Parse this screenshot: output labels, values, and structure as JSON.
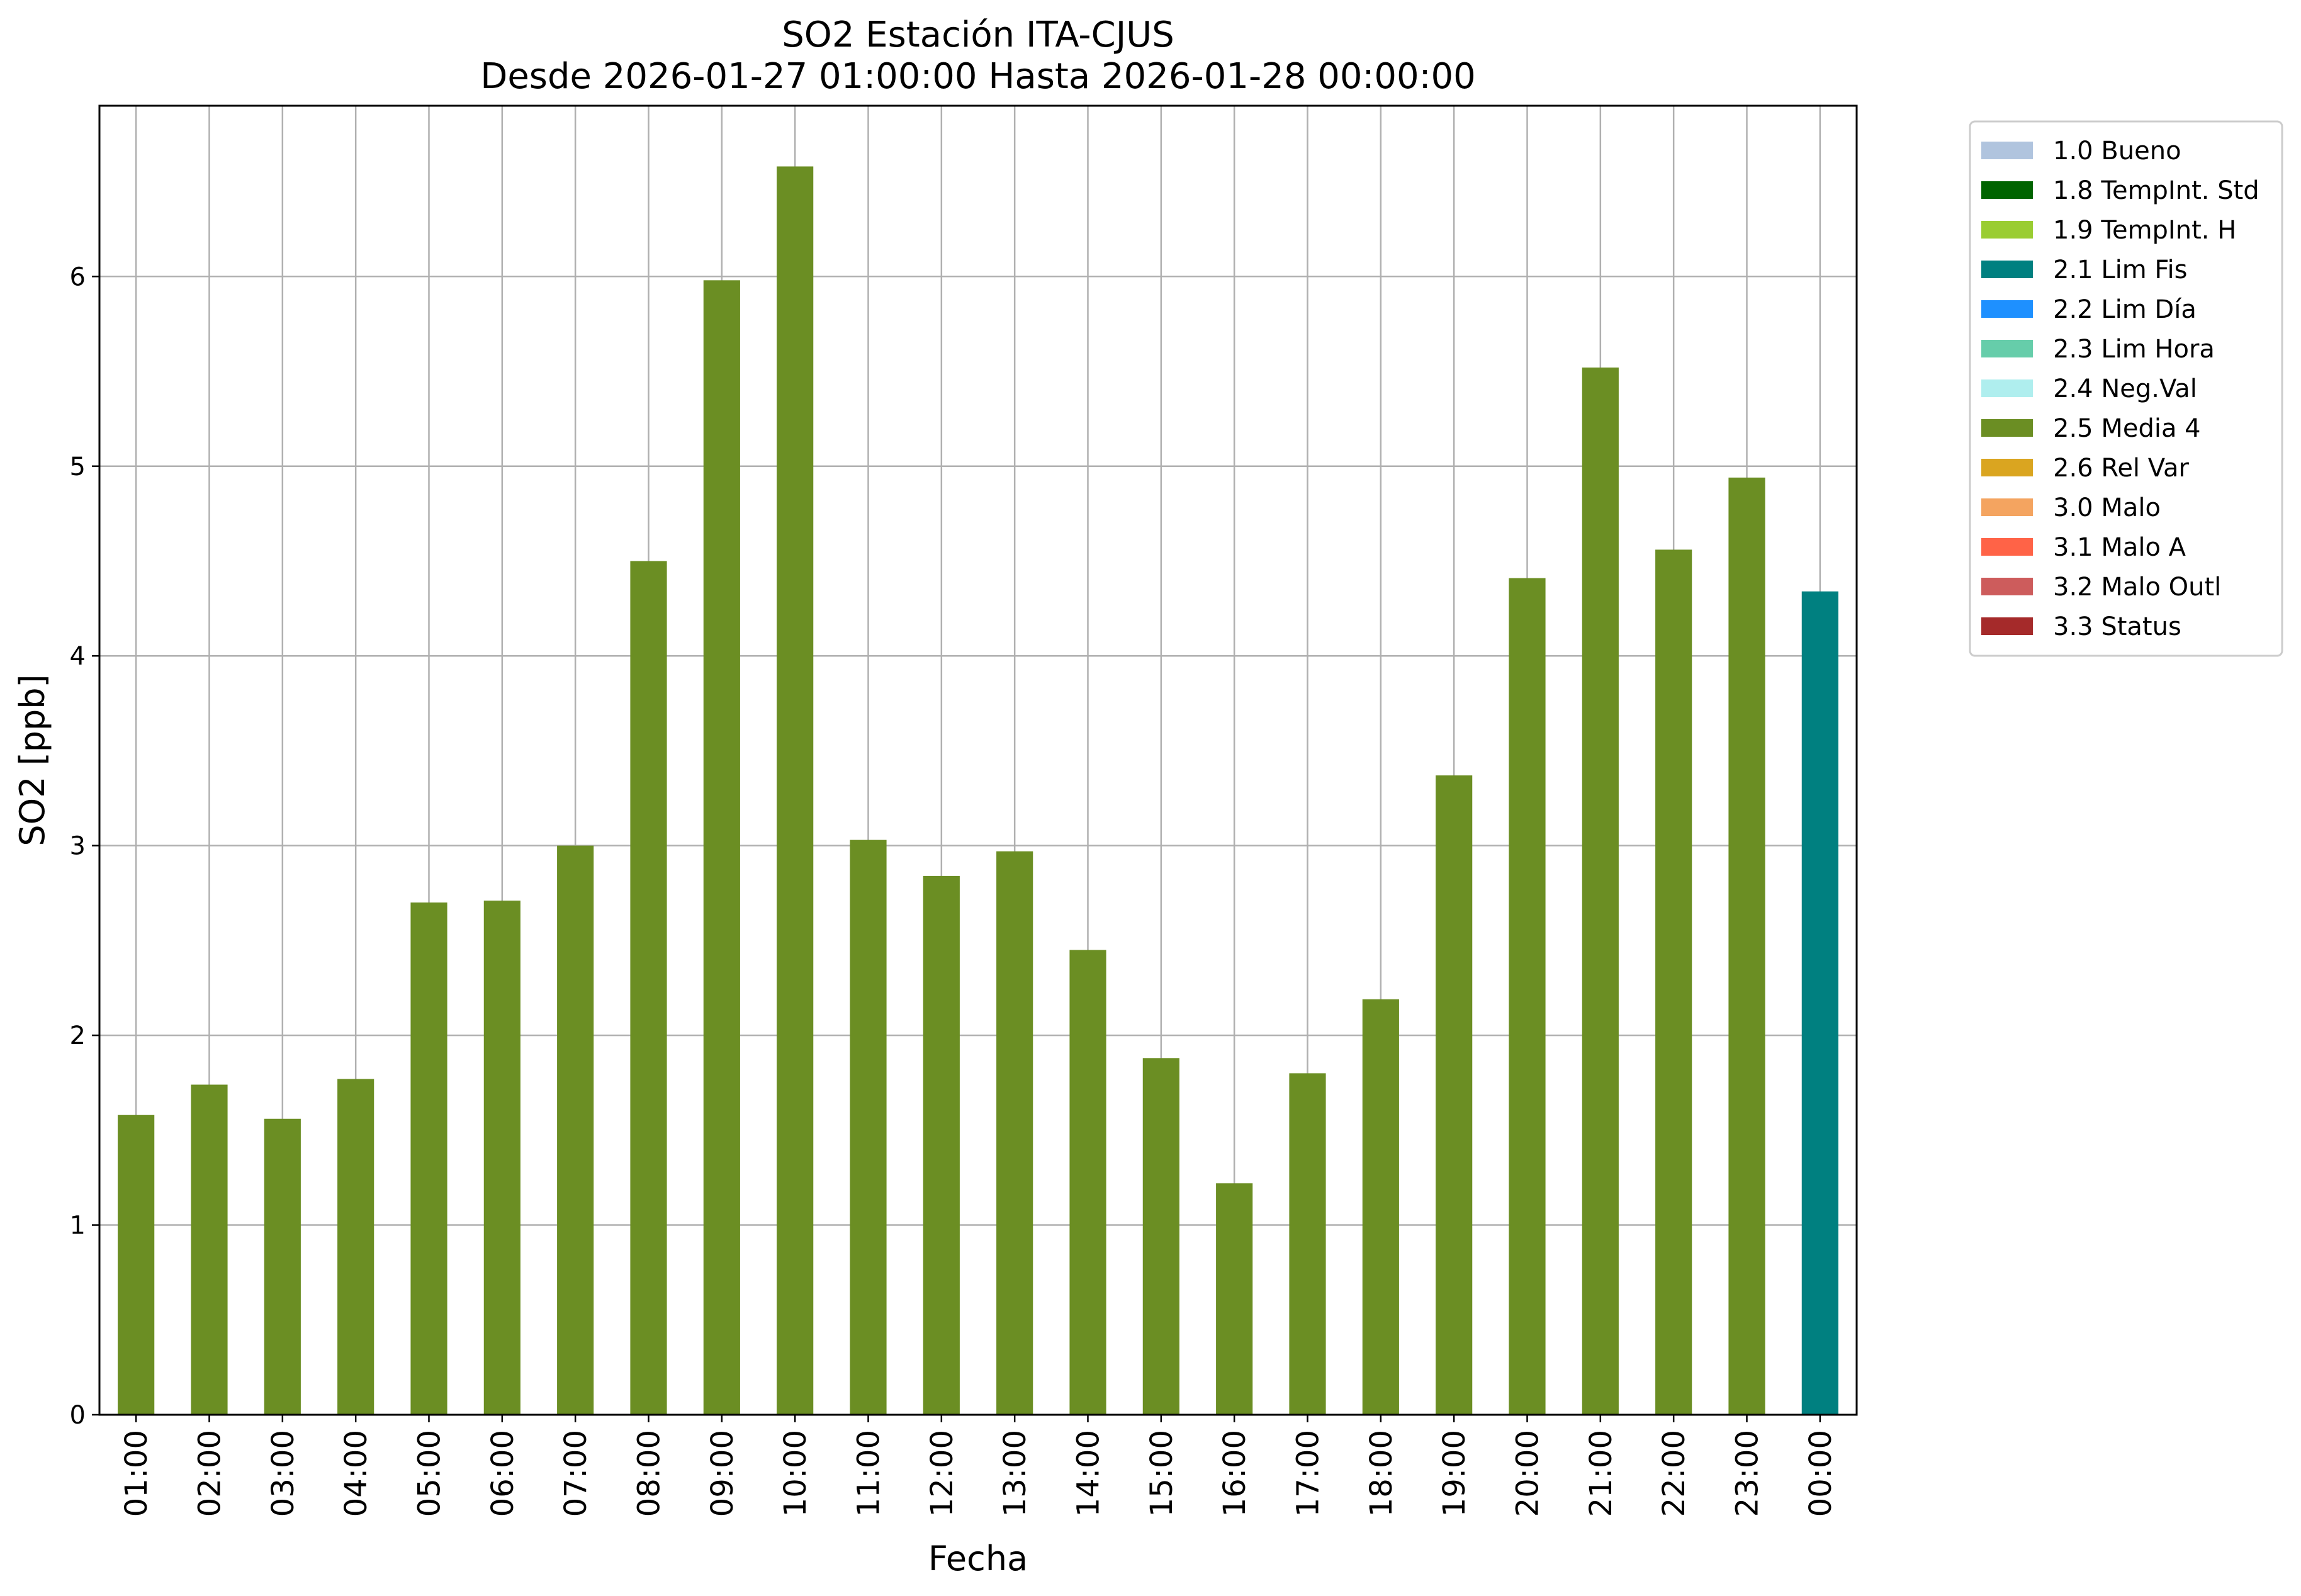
{
  "chart_data": {
    "type": "bar",
    "title": "SO2 Estación ITA-CJUS",
    "subtitle": "Desde 2026-01-27 01:00:00 Hasta 2026-01-28 00:00:00",
    "xlabel": "Fecha",
    "ylabel": "SO2 [ppb]",
    "ylim": [
      0,
      6.9
    ],
    "yticks": [
      "0",
      "1",
      "2",
      "3",
      "4",
      "5",
      "6"
    ],
    "grid": true,
    "legend_position": "outside-right-top",
    "categories": [
      "01:00",
      "02:00",
      "03:00",
      "04:00",
      "05:00",
      "06:00",
      "07:00",
      "08:00",
      "09:00",
      "10:00",
      "11:00",
      "12:00",
      "13:00",
      "14:00",
      "15:00",
      "16:00",
      "17:00",
      "18:00",
      "19:00",
      "20:00",
      "21:00",
      "22:00",
      "23:00",
      "00:00"
    ],
    "values": [
      1.58,
      1.74,
      1.56,
      1.77,
      2.7,
      2.71,
      3.0,
      4.5,
      5.98,
      6.58,
      3.03,
      2.84,
      2.97,
      2.45,
      1.88,
      1.22,
      1.8,
      2.19,
      3.37,
      4.41,
      5.52,
      4.56,
      4.94,
      4.34
    ],
    "bar_flags": [
      "2.5 Media 4",
      "2.5 Media 4",
      "2.5 Media 4",
      "2.5 Media 4",
      "2.5 Media 4",
      "2.5 Media 4",
      "2.5 Media 4",
      "2.5 Media 4",
      "2.5 Media 4",
      "2.5 Media 4",
      "2.5 Media 4",
      "2.5 Media 4",
      "2.5 Media 4",
      "2.5 Media 4",
      "2.5 Media 4",
      "2.5 Media 4",
      "2.5 Media 4",
      "2.5 Media 4",
      "2.5 Media 4",
      "2.5 Media 4",
      "2.5 Media 4",
      "2.5 Media 4",
      "2.5 Media 4",
      "2.1 Lim Fis"
    ],
    "legend": [
      {
        "label": "1.0 Bueno",
        "color": "#b0c4de"
      },
      {
        "label": "1.8 TempInt. Std",
        "color": "#006400"
      },
      {
        "label": "1.9 TempInt. H",
        "color": "#9acd32"
      },
      {
        "label": "2.1 Lim Fis",
        "color": "#008080"
      },
      {
        "label": "2.2 Lim Día",
        "color": "#1e90ff"
      },
      {
        "label": "2.3 Lim Hora",
        "color": "#66cdaa"
      },
      {
        "label": "2.4 Neg.Val",
        "color": "#afeeee"
      },
      {
        "label": "2.5 Media 4",
        "color": "#6b8e23"
      },
      {
        "label": "2.6 Rel Var",
        "color": "#daa520"
      },
      {
        "label": "3.0 Malo",
        "color": "#f4a460"
      },
      {
        "label": "3.1 Malo A",
        "color": "#ff6347"
      },
      {
        "label": "3.2 Malo Outl",
        "color": "#cd5c5c"
      },
      {
        "label": "3.3 Status",
        "color": "#a52a2a"
      }
    ]
  }
}
